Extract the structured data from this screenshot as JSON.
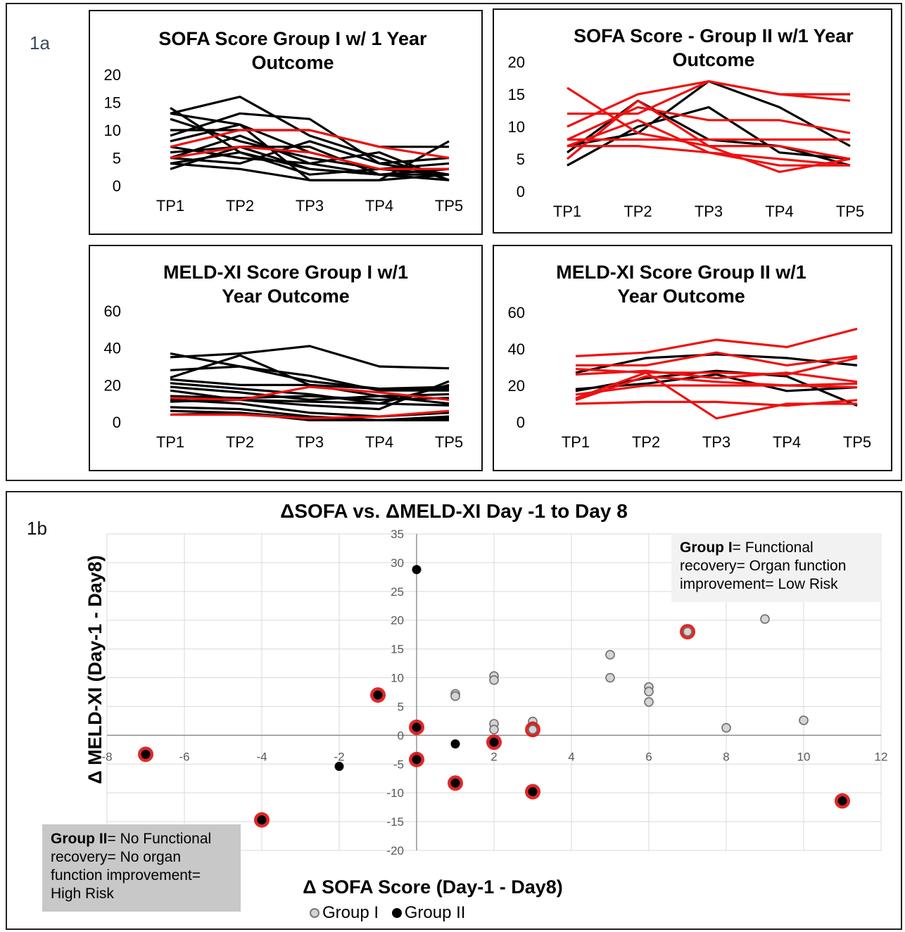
{
  "figure": {
    "label_a": "1a",
    "label_b": "1b"
  },
  "colors": {
    "survivor": "#000000",
    "non_survivor": "#ee1111",
    "group1_fill": "#d4d4d4",
    "group2_fill": "#000000",
    "ring": "#dd1111"
  },
  "chart_data": [
    {
      "type": "line",
      "title_lines": [
        "SOFA Score Group I w/ 1 Year",
        "Outcome"
      ],
      "categories": [
        "TP1",
        "TP2",
        "TP3",
        "TP4",
        "TP5"
      ],
      "ylim": [
        0,
        20
      ],
      "yticks": [
        0,
        5,
        10,
        15,
        20
      ],
      "grid": false,
      "series": [
        {
          "color": "black",
          "values": [
            14,
            6,
            3,
            2,
            2
          ]
        },
        {
          "color": "black",
          "values": [
            13,
            16,
            9,
            5,
            1
          ]
        },
        {
          "color": "black",
          "values": [
            13,
            11,
            6,
            3,
            3
          ]
        },
        {
          "color": "black",
          "values": [
            12,
            8,
            5,
            3,
            2
          ]
        },
        {
          "color": "black",
          "values": [
            10,
            10,
            10,
            7,
            7
          ]
        },
        {
          "color": "black",
          "values": [
            9,
            13,
            12,
            4,
            2
          ]
        },
        {
          "color": "black",
          "values": [
            8,
            11,
            1,
            1,
            8
          ]
        },
        {
          "color": "black",
          "values": [
            7,
            5,
            4,
            6,
            1
          ]
        },
        {
          "color": "black",
          "values": [
            6,
            7,
            7,
            2,
            3
          ]
        },
        {
          "color": "black",
          "values": [
            5,
            4,
            8,
            4,
            5
          ]
        },
        {
          "color": "black",
          "values": [
            5,
            9,
            4,
            2,
            1
          ]
        },
        {
          "color": "black",
          "values": [
            4,
            6,
            2,
            3,
            4
          ]
        },
        {
          "color": "black",
          "values": [
            4,
            3,
            1,
            1,
            2
          ]
        },
        {
          "color": "black",
          "values": [
            3,
            7,
            3,
            2,
            1
          ]
        },
        {
          "color": "red",
          "values": [
            7,
            10,
            10,
            7,
            5
          ]
        },
        {
          "color": "red",
          "values": [
            5,
            7,
            6,
            3,
            3
          ]
        }
      ]
    },
    {
      "type": "line",
      "title_lines": [
        "SOFA Score - Group II w/1 Year",
        "Outcome"
      ],
      "categories": [
        "TP1",
        "TP2",
        "TP3",
        "TP4",
        "TP5"
      ],
      "ylim": [
        0,
        20
      ],
      "yticks": [
        0,
        5,
        10,
        15,
        20
      ],
      "grid": false,
      "series": [
        {
          "color": "black",
          "values": [
            4,
            10,
            13,
            6,
            5
          ]
        },
        {
          "color": "black",
          "values": [
            6,
            14,
            8,
            7,
            4
          ]
        },
        {
          "color": "black",
          "values": [
            7,
            9,
            17,
            13,
            7
          ]
        },
        {
          "color": "red",
          "values": [
            16,
            9,
            7,
            3,
            5
          ]
        },
        {
          "color": "red",
          "values": [
            12,
            12,
            17,
            15,
            15
          ]
        },
        {
          "color": "red",
          "values": [
            10,
            15,
            17,
            15,
            14
          ]
        },
        {
          "color": "red",
          "values": [
            8,
            13,
            11,
            11,
            9
          ]
        },
        {
          "color": "red",
          "values": [
            8,
            8,
            8,
            8,
            8
          ]
        },
        {
          "color": "red",
          "values": [
            7,
            7,
            6,
            4,
            4
          ]
        },
        {
          "color": "red",
          "values": [
            5,
            14,
            7,
            7,
            5
          ]
        },
        {
          "color": "red",
          "values": [
            7,
            11,
            6,
            5,
            4
          ]
        }
      ]
    },
    {
      "type": "line",
      "title_lines": [
        "MELD-XI Score Group I w/1",
        "Year Outcome"
      ],
      "categories": [
        "TP1",
        "TP2",
        "TP3",
        "TP4",
        "TP5"
      ],
      "ylim": [
        0,
        60
      ],
      "yticks": [
        0,
        20,
        40,
        60
      ],
      "grid": false,
      "series": [
        {
          "color": "black",
          "values": [
            37,
            30,
            22,
            18,
            18
          ]
        },
        {
          "color": "black",
          "values": [
            35,
            37,
            41,
            30,
            29
          ]
        },
        {
          "color": "black",
          "values": [
            28,
            30,
            25,
            17,
            17
          ]
        },
        {
          "color": "black",
          "values": [
            24,
            36,
            20,
            14,
            10
          ]
        },
        {
          "color": "black",
          "values": [
            23,
            20,
            20,
            18,
            19
          ]
        },
        {
          "color": "black",
          "values": [
            21,
            18,
            15,
            10,
            20
          ]
        },
        {
          "color": "black",
          "values": [
            19,
            16,
            12,
            14,
            15
          ]
        },
        {
          "color": "black",
          "values": [
            17,
            12,
            9,
            7,
            22
          ]
        },
        {
          "color": "black",
          "values": [
            14,
            13,
            14,
            12,
            13
          ]
        },
        {
          "color": "black",
          "values": [
            12,
            10,
            5,
            3,
            5
          ]
        },
        {
          "color": "black",
          "values": [
            8,
            7,
            3,
            1,
            2
          ]
        },
        {
          "color": "black",
          "values": [
            6,
            5,
            2,
            1,
            3
          ]
        },
        {
          "color": "black",
          "values": [
            4,
            5,
            1,
            1,
            1
          ]
        },
        {
          "color": "black",
          "values": [
            11,
            12,
            11,
            10,
            9
          ]
        },
        {
          "color": "red",
          "values": [
            13,
            12,
            19,
            16,
            12
          ]
        },
        {
          "color": "red",
          "values": [
            4,
            4,
            2,
            3,
            6
          ]
        }
      ]
    },
    {
      "type": "line",
      "title_lines": [
        "MELD-XI Score Group II w/1",
        "Year Outcome"
      ],
      "categories": [
        "TP1",
        "TP2",
        "TP3",
        "TP4",
        "TP5"
      ],
      "ylim": [
        0,
        60
      ],
      "yticks": [
        0,
        20,
        40,
        60
      ],
      "grid": false,
      "series": [
        {
          "color": "black",
          "values": [
            27,
            35,
            37,
            35,
            31
          ]
        },
        {
          "color": "black",
          "values": [
            17,
            24,
            28,
            25,
            9
          ]
        },
        {
          "color": "black",
          "values": [
            18,
            21,
            26,
            17,
            19
          ]
        },
        {
          "color": "red",
          "values": [
            36,
            38,
            45,
            41,
            51
          ]
        },
        {
          "color": "red",
          "values": [
            31,
            31,
            38,
            31,
            36
          ]
        },
        {
          "color": "red",
          "values": [
            29,
            27,
            27,
            26,
            35
          ]
        },
        {
          "color": "red",
          "values": [
            26,
            28,
            24,
            27,
            22
          ]
        },
        {
          "color": "red",
          "values": [
            12,
            25,
            22,
            20,
            21
          ]
        },
        {
          "color": "red",
          "values": [
            15,
            20,
            20,
            20,
            19
          ]
        },
        {
          "color": "red",
          "values": [
            13,
            27,
            2,
            10,
            10
          ]
        },
        {
          "color": "red",
          "values": [
            10,
            11,
            11,
            9,
            12
          ]
        }
      ]
    },
    {
      "type": "scatter",
      "title": "ΔSOFA vs. ΔMELD-XI Day -1 to Day 8",
      "xlabel": "Δ SOFA Score (Day-1 - Day8)",
      "ylabel": "Δ MELD-XI (Day-1 - Day8)",
      "xlim": [
        -8,
        12
      ],
      "ylim": [
        -20,
        35
      ],
      "xticks": [
        -8,
        -6,
        -4,
        -2,
        0,
        2,
        4,
        6,
        8,
        10,
        12
      ],
      "yticks": [
        -20,
        -15,
        -10,
        -5,
        0,
        5,
        10,
        15,
        20,
        25,
        30,
        35
      ],
      "grid": true,
      "legend_position": "bottom-center",
      "series": [
        {
          "name": "Group I",
          "points": [
            [
              1,
              7.2
            ],
            [
              1,
              6.8
            ],
            [
              2,
              10.3
            ],
            [
              2,
              9.6
            ],
            [
              2,
              2.0
            ],
            [
              2,
              1.0
            ],
            [
              3,
              2.4
            ],
            [
              3,
              1.6
            ],
            [
              5,
              14.0
            ],
            [
              5,
              10.0
            ],
            [
              6,
              8.4
            ],
            [
              6,
              7.6
            ],
            [
              6,
              5.8
            ],
            [
              7,
              18.0
            ],
            [
              8,
              1.3
            ],
            [
              9,
              20.2
            ],
            [
              10,
              2.6
            ],
            [
              3,
              1.0
            ]
          ],
          "ringed": [
            false,
            false,
            false,
            false,
            false,
            false,
            false,
            false,
            false,
            false,
            false,
            false,
            false,
            true,
            false,
            false,
            false,
            true
          ]
        },
        {
          "name": "Group II",
          "points": [
            [
              0,
              28.8
            ],
            [
              -7,
              -3.3
            ],
            [
              -4,
              -14.7
            ],
            [
              -2,
              -5.4
            ],
            [
              -1,
              7.0
            ],
            [
              0,
              1.4
            ],
            [
              0,
              -4.2
            ],
            [
              1,
              -1.5
            ],
            [
              1,
              -8.3
            ],
            [
              2,
              -1.2
            ],
            [
              3,
              -9.8
            ],
            [
              11,
              -11.4
            ]
          ],
          "ringed": [
            false,
            true,
            true,
            false,
            true,
            true,
            true,
            false,
            true,
            true,
            true,
            true
          ]
        }
      ]
    }
  ],
  "notes": {
    "group1_bold": "Group I",
    "group1_text": "= Functional recovery= Organ function improvement= Low Risk",
    "group2_bold": "Group II",
    "group2_text": "= No Functional recovery= No organ function improvement= High Risk"
  },
  "legend": {
    "group1": "Group I",
    "group2": "Group II"
  }
}
